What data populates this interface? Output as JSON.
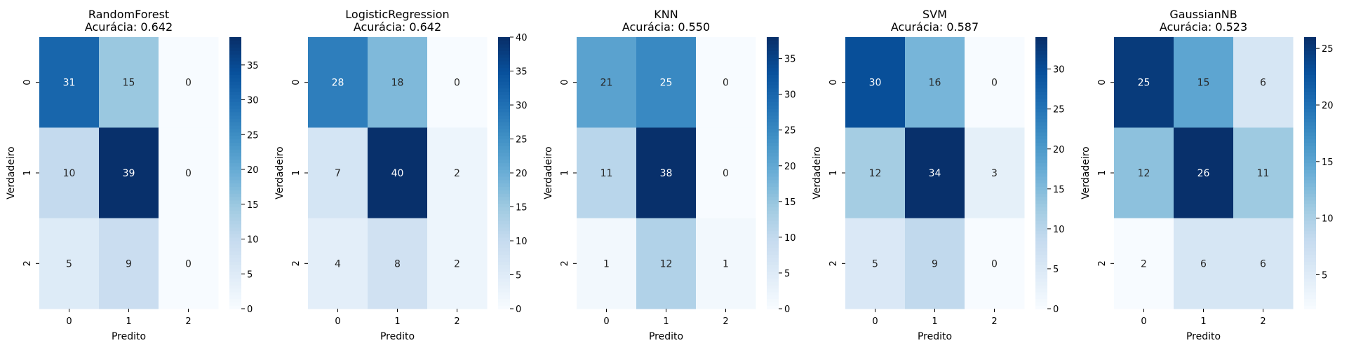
{
  "chart_data": [
    {
      "type": "heatmap",
      "title": "RandomForest",
      "subtitle": "Acurácia: 0.642",
      "xlabel": "Predito",
      "ylabel": "Verdadeiro",
      "x_categories": [
        "0",
        "1",
        "2"
      ],
      "y_categories": [
        "0",
        "1",
        "2"
      ],
      "values": [
        [
          31,
          15,
          0
        ],
        [
          10,
          39,
          0
        ],
        [
          5,
          9,
          0
        ]
      ],
      "colorbar": {
        "min": 0,
        "max": 39,
        "ticks": [
          0,
          5,
          10,
          15,
          20,
          25,
          30,
          35
        ]
      }
    },
    {
      "type": "heatmap",
      "title": "LogisticRegression",
      "subtitle": "Acurácia: 0.642",
      "xlabel": "Predito",
      "ylabel": "Verdadeiro",
      "x_categories": [
        "0",
        "1",
        "2"
      ],
      "y_categories": [
        "0",
        "1",
        "2"
      ],
      "values": [
        [
          28,
          18,
          0
        ],
        [
          7,
          40,
          2
        ],
        [
          4,
          8,
          2
        ]
      ],
      "colorbar": {
        "min": 0,
        "max": 40,
        "ticks": [
          0,
          5,
          10,
          15,
          20,
          25,
          30,
          35,
          40
        ]
      }
    },
    {
      "type": "heatmap",
      "title": "KNN",
      "subtitle": "Acurácia: 0.550",
      "xlabel": "Predito",
      "ylabel": "Verdadeiro",
      "x_categories": [
        "0",
        "1",
        "2"
      ],
      "y_categories": [
        "0",
        "1",
        "2"
      ],
      "values": [
        [
          21,
          25,
          0
        ],
        [
          11,
          38,
          0
        ],
        [
          1,
          12,
          1
        ]
      ],
      "colorbar": {
        "min": 0,
        "max": 38,
        "ticks": [
          0,
          5,
          10,
          15,
          20,
          25,
          30,
          35
        ]
      }
    },
    {
      "type": "heatmap",
      "title": "SVM",
      "subtitle": "Acurácia: 0.587",
      "xlabel": "Predito",
      "ylabel": "Verdadeiro",
      "x_categories": [
        "0",
        "1",
        "2"
      ],
      "y_categories": [
        "0",
        "1",
        "2"
      ],
      "values": [
        [
          30,
          16,
          0
        ],
        [
          12,
          34,
          3
        ],
        [
          5,
          9,
          0
        ]
      ],
      "colorbar": {
        "min": 0,
        "max": 34,
        "ticks": [
          0,
          5,
          10,
          15,
          20,
          25,
          30
        ]
      }
    },
    {
      "type": "heatmap",
      "title": "GaussianNB",
      "subtitle": "Acurácia: 0.523",
      "xlabel": "Predito",
      "ylabel": "Verdadeiro",
      "x_categories": [
        "0",
        "1",
        "2"
      ],
      "y_categories": [
        "0",
        "1",
        "2"
      ],
      "values": [
        [
          25,
          15,
          6
        ],
        [
          12,
          26,
          11
        ],
        [
          2,
          6,
          6
        ]
      ],
      "colorbar": {
        "min": 2,
        "max": 26,
        "ticks": [
          5,
          10,
          15,
          20,
          25
        ]
      }
    }
  ],
  "colormap": "Blues"
}
